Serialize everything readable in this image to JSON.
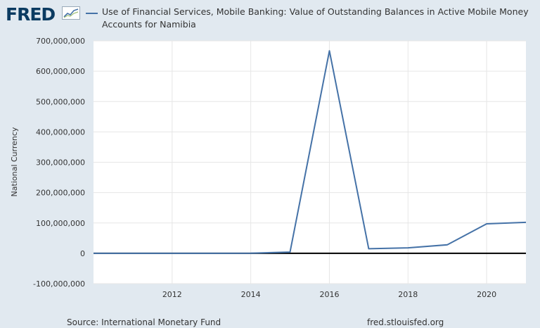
{
  "brand": {
    "name": "FRED",
    "icon": "trend-chart-icon"
  },
  "chart_data": {
    "type": "line",
    "title": "Use of Financial Services, Mobile Banking: Value of Outstanding Balances in Active Mobile Money Accounts for Namibia",
    "xlabel": "",
    "ylabel": "National Currency",
    "xlim": [
      2010,
      2021
    ],
    "ylim": [
      -100000000,
      700000000
    ],
    "x_ticks": [
      2012,
      2014,
      2016,
      2018,
      2020
    ],
    "y_ticks": [
      -100000000,
      0,
      100000000,
      200000000,
      300000000,
      400000000,
      500000000,
      600000000,
      700000000
    ],
    "y_tick_labels": [
      "-100,000,000",
      "0",
      "100,000,000",
      "200,000,000",
      "300,000,000",
      "400,000,000",
      "500,000,000",
      "600,000,000",
      "700,000,000"
    ],
    "grid": true,
    "series": [
      {
        "name": "Use of Financial Services, Mobile Banking: Value of Outstanding Balances in Active Mobile Money Accounts for Namibia",
        "color": "#4572a7",
        "x": [
          2010,
          2011,
          2012,
          2013,
          2014,
          2015,
          2016,
          2017,
          2018,
          2019,
          2020,
          2021
        ],
        "values": [
          0,
          0,
          0,
          0,
          500000,
          4000000,
          667000000,
          15000000,
          18000000,
          28000000,
          97000000,
          102000000
        ]
      }
    ]
  },
  "footer": {
    "source": "Source: International Monetary Fund",
    "url": "fred.stlouisfed.org"
  }
}
